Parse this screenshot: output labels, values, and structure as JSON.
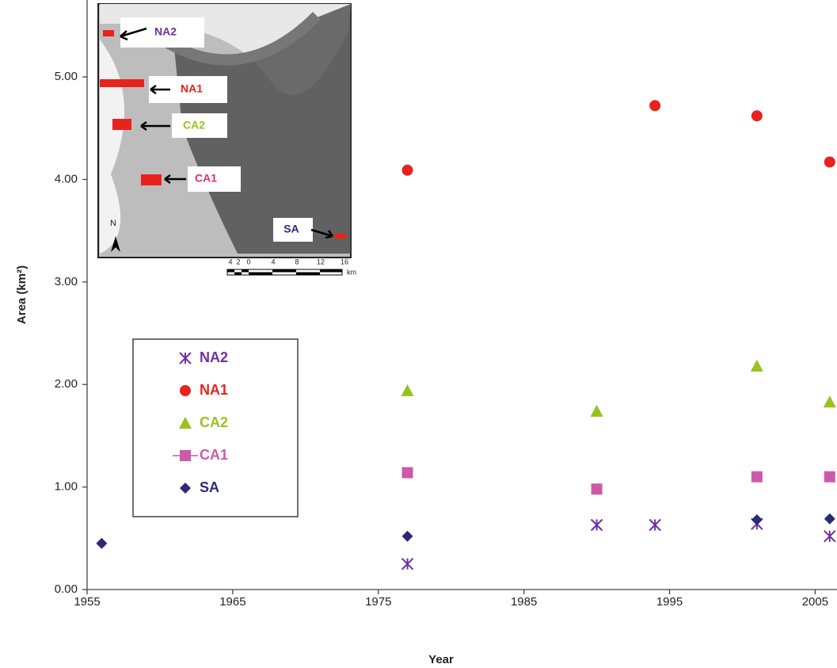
{
  "chart_data": {
    "type": "scatter",
    "y_label": "Area (km²)",
    "x_label": "Year",
    "xlim": [
      1955,
      2006.5
    ],
    "xticks": [
      1955,
      1965,
      1975,
      1985,
      1995,
      2005
    ],
    "ylim": [
      0,
      5.75
    ],
    "yticks": [
      {
        "value": 0,
        "label": "0.00"
      },
      {
        "value": 1,
        "label": "1.00"
      },
      {
        "value": 2,
        "label": "2.00"
      },
      {
        "value": 3,
        "label": "3.00"
      },
      {
        "value": 4,
        "label": "4.00"
      },
      {
        "value": 5,
        "label": "5.00"
      }
    ],
    "grid": false,
    "series": [
      {
        "name": "NA2",
        "color": "#7030a0",
        "marker": "asterisk",
        "x": [
          1977,
          1990,
          1994,
          2001,
          2006
        ],
        "values": [
          0.25,
          0.63,
          0.63,
          0.64,
          0.52
        ]
      },
      {
        "name": "NA1",
        "color": "#e8231c",
        "marker": "circle",
        "x": [
          1977,
          1994,
          2001,
          2006
        ],
        "values": [
          4.09,
          4.72,
          4.62,
          4.17
        ]
      },
      {
        "name": "CA2",
        "color": "#99c21c",
        "marker": "triangle",
        "x": [
          1977,
          1990,
          2001,
          2006
        ],
        "values": [
          1.94,
          1.74,
          2.18,
          1.83
        ]
      },
      {
        "name": "CA1",
        "color": "#cc5aa8",
        "marker": "square",
        "x": [
          1977,
          1990,
          2001,
          2006
        ],
        "values": [
          1.14,
          0.98,
          1.1,
          1.1
        ]
      },
      {
        "name": "SA",
        "color": "#2b2a78",
        "marker": "diamond",
        "x": [
          1956,
          1977,
          2001,
          2006
        ],
        "values": [
          0.45,
          0.52,
          0.68,
          0.69
        ]
      }
    ],
    "inset": {
      "labels": [
        "NA2",
        "NA1",
        "CA2",
        "CA1",
        "SA"
      ],
      "north": "N",
      "scale_ticks": [
        "4",
        "2",
        "0",
        "4",
        "8",
        "12",
        "16"
      ],
      "scale_unit": "km"
    }
  }
}
